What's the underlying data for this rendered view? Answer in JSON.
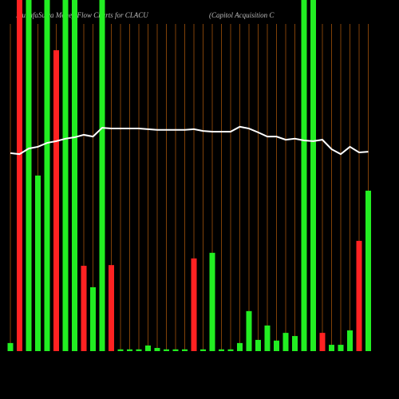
{
  "chart_data": {
    "type": "bar",
    "title": "MunafaSutra  Money Flow  Charts for CLACU",
    "subtitle": "(Capitol Acquisition  C",
    "ylim": [
      0,
      100
    ],
    "series": [
      {
        "name": "Money flow",
        "colors": [
          "#22ee22",
          "#ff2222",
          "#22ee22",
          "#22ee22",
          "#22ee22",
          "#ff2222",
          "#22ee22",
          "#22ee22",
          "#ff2222",
          "#22ee22",
          "#22ee22",
          "#ff2222",
          "#22ee22",
          "#22ee22",
          "#22ee22",
          "#22ee22",
          "#22ee22",
          "#22ee22",
          "#22ee22",
          "#22ee22",
          "#ff2222",
          "#22ee22",
          "#22ee22",
          "#22ee22",
          "#22ee22",
          "#22ee22",
          "#22ee22",
          "#22ee22",
          "#22ee22",
          "#22ee22",
          "#22ee22",
          "#22ee22",
          "#22ee22",
          "#22ee22",
          "#ff2222",
          "#22ee22",
          "#22ee22",
          "#22ee22",
          "#ff2222",
          "#22ee22"
        ],
        "values": [
          2.3,
          100,
          100,
          50,
          100,
          85.7,
          100,
          100,
          24.3,
          18.2,
          100,
          24.5,
          0.5,
          0.5,
          0.5,
          1.6,
          0.9,
          0.5,
          0.5,
          0.5,
          26.4,
          0.5,
          28,
          0.5,
          0.5,
          2.3,
          11.4,
          3.2,
          7.3,
          3,
          5.2,
          4.3,
          100,
          100,
          5.2,
          1.8,
          1.8,
          5.9,
          31.4,
          45.7
        ]
      },
      {
        "name": "Price",
        "type": "line",
        "color": "#ffffff",
        "values": [
          56.4,
          56.1,
          57.7,
          58.2,
          59.3,
          59.8,
          60.5,
          60.9,
          61.6,
          61.1,
          63.6,
          63.4,
          63.4,
          63.4,
          63.4,
          63.2,
          63.0,
          63.0,
          63.0,
          63.0,
          63.2,
          62.7,
          62.5,
          62.5,
          62.5,
          63.9,
          63.4,
          62.3,
          61.1,
          61.1,
          60.2,
          60.5,
          60,
          59.8,
          60.2,
          57.5,
          56.1,
          58.2,
          56.6,
          56.8
        ]
      }
    ]
  }
}
